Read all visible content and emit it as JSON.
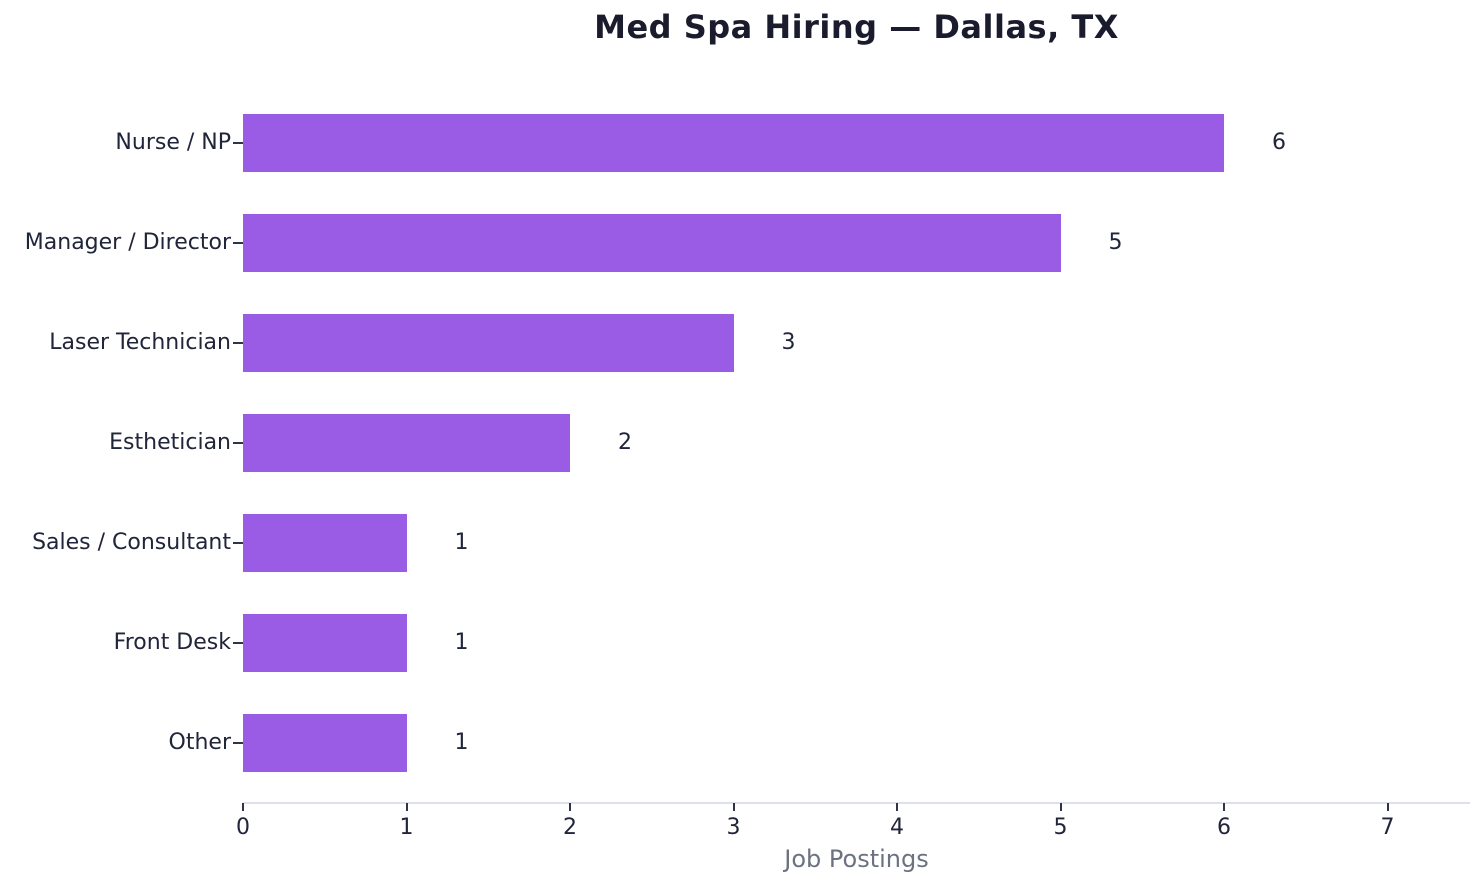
{
  "chart_data": {
    "type": "bar",
    "orientation": "horizontal",
    "title": "Med Spa Hiring — Dallas, TX",
    "xlabel": "Job Postings",
    "ylabel": "",
    "categories": [
      "Nurse / NP",
      "Manager / Director",
      "Laser Technician",
      "Esthetician",
      "Sales / Consultant",
      "Front Desk",
      "Other"
    ],
    "values": [
      6,
      5,
      3,
      2,
      1,
      1,
      1
    ],
    "value_labels": [
      "6",
      "5",
      "3",
      "2",
      "1",
      "1",
      "1"
    ],
    "xticks": [
      "0",
      "1",
      "2",
      "3",
      "4",
      "5",
      "6",
      "7"
    ],
    "xlim": [
      0,
      7.5
    ],
    "grid": false,
    "legend": "none",
    "colors": {
      "bar": "#9b5ce5",
      "title_text": "#1a1c2e",
      "label_text": "#21253a",
      "xlabel_text": "#6b7280",
      "axis_line": "#e0e1e8",
      "tick_mark": "#30344a",
      "background": "#ffffff"
    }
  }
}
